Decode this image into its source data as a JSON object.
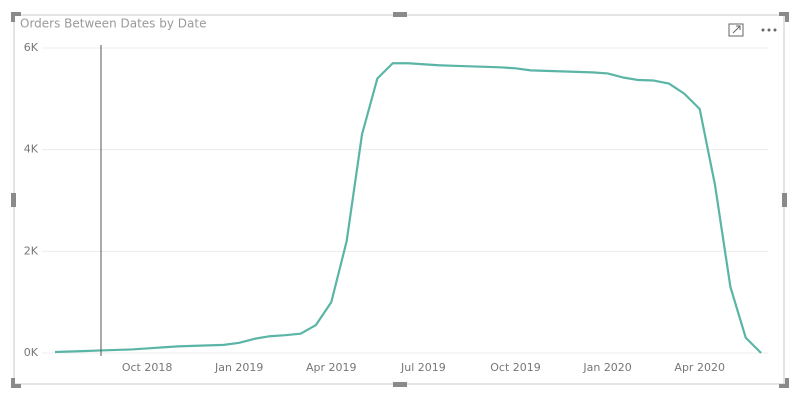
{
  "chart_data": {
    "type": "line",
    "title": "Orders Between Dates by Date",
    "categories": [
      null,
      null,
      null,
      null,
      null,
      null,
      "Oct 2018",
      null,
      null,
      null,
      null,
      null,
      "Jan 2019",
      null,
      null,
      null,
      null,
      null,
      "Apr 2019",
      null,
      null,
      null,
      null,
      null,
      "Jul 2019",
      null,
      null,
      null,
      null,
      null,
      "Oct 2019",
      null,
      null,
      null,
      null,
      null,
      "Jan 2020",
      null,
      null,
      null,
      null,
      null,
      "Apr 2020",
      null,
      null,
      null,
      null
    ],
    "series": [
      {
        "name": "Orders Between Dates",
        "color": "#5ab5a6",
        "values": [
          20,
          30,
          40,
          50,
          60,
          70,
          90,
          110,
          130,
          140,
          150,
          160,
          200,
          280,
          330,
          350,
          380,
          550,
          1000,
          2200,
          4300,
          5400,
          5700,
          5700,
          5680,
          5660,
          5650,
          5640,
          5630,
          5620,
          5600,
          5560,
          5550,
          5540,
          5530,
          5520,
          5500,
          5420,
          5370,
          5360,
          5300,
          5100,
          4800,
          3300,
          1300,
          300,
          0
        ]
      }
    ],
    "ylim": [
      0,
      6000
    ],
    "yticks": [
      {
        "value": 0,
        "label": "0K"
      },
      {
        "value": 2000,
        "label": "2K"
      },
      {
        "value": 4000,
        "label": "4K"
      },
      {
        "value": 6000,
        "label": "6K"
      }
    ],
    "grid": true
  }
}
